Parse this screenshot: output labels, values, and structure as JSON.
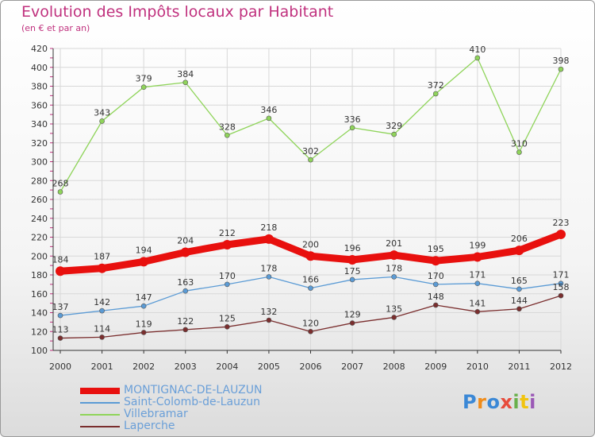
{
  "header": {
    "title": "Evolution des Impôts locaux par Habitant",
    "subtitle": "(en € et par an)"
  },
  "logo": {
    "letters": [
      "P",
      "r",
      "o",
      "x",
      "i",
      "t",
      "i"
    ],
    "text": "Proxiti"
  },
  "colors": {
    "title": "#c0317e",
    "legend_text": "#6a9fd8",
    "grid": "#d8d8d8",
    "axis_tick": "#c0317e"
  },
  "chart_data": {
    "type": "line",
    "title": "Evolution des Impôts locaux par Habitant",
    "subtitle": "(en € et par an)",
    "xlabel": "",
    "ylabel": "",
    "x": [
      "2000",
      "2001",
      "2002",
      "2003",
      "2004",
      "2005",
      "2006",
      "2007",
      "2008",
      "2009",
      "2010",
      "2011",
      "2012"
    ],
    "ylim": [
      100,
      420
    ],
    "yticks": [
      100,
      120,
      140,
      160,
      180,
      200,
      220,
      240,
      260,
      280,
      300,
      320,
      340,
      360,
      380,
      400,
      420
    ],
    "grid": true,
    "legend_position": "bottom-left",
    "series": [
      {
        "name": "MONTIGNAC-DE-LAUZUN",
        "color": "#e8100e",
        "values": [
          184,
          187,
          194,
          204,
          212,
          218,
          200,
          196,
          201,
          195,
          199,
          206,
          223
        ]
      },
      {
        "name": "Saint-Colomb-de-Lauzun",
        "color": "#5b9bd5",
        "values": [
          137,
          142,
          147,
          163,
          170,
          178,
          166,
          175,
          178,
          170,
          171,
          165,
          171
        ]
      },
      {
        "name": "Villebramar",
        "color": "#8fd45a",
        "values": [
          268,
          343,
          379,
          384,
          328,
          346,
          302,
          336,
          329,
          372,
          410,
          310,
          398
        ]
      },
      {
        "name": "Laperche",
        "color": "#7a2e2e",
        "values": [
          113,
          114,
          119,
          122,
          125,
          132,
          120,
          129,
          135,
          148,
          141,
          144,
          158
        ]
      }
    ]
  }
}
